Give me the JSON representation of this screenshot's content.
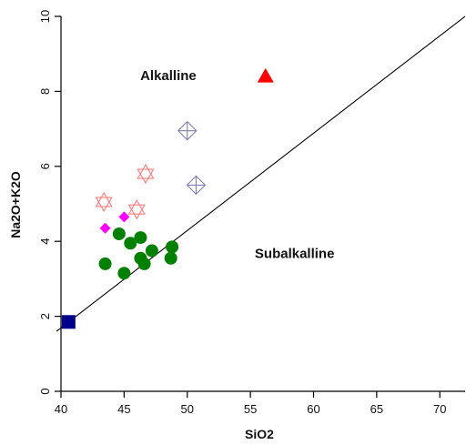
{
  "chart_data": {
    "type": "scatter",
    "xlabel": "SiO2",
    "ylabel": "Na2O+K2O",
    "xlim": [
      40,
      72
    ],
    "ylim": [
      0,
      10
    ],
    "x_ticks": [
      40,
      45,
      50,
      55,
      60,
      65,
      70
    ],
    "y_ticks": [
      0,
      2,
      4,
      6,
      8,
      10
    ],
    "annotations": [
      {
        "text": "Alkalline",
        "x": 48.5,
        "y": 8.3
      },
      {
        "text": "Subalkalline",
        "x": 58.5,
        "y": 3.55
      }
    ],
    "divider_line": {
      "x": [
        39.65,
        72
      ],
      "y": [
        1.6,
        10
      ]
    },
    "colors": {
      "green": "#008000",
      "magenta": "#ff00ff",
      "red": "#ff0000",
      "star_red": "#ff7f7f",
      "navy": "#00008b",
      "diamond_outline": "#7f7fb3"
    },
    "series": [
      {
        "marker": "circle-filled",
        "color": "#008000",
        "points": [
          [
            43.5,
            3.4
          ],
          [
            44.6,
            4.2
          ],
          [
            45.0,
            3.15
          ],
          [
            45.5,
            3.95
          ],
          [
            46.3,
            4.1
          ],
          [
            46.3,
            3.55
          ],
          [
            46.6,
            3.4
          ],
          [
            47.2,
            3.75
          ],
          [
            48.7,
            3.55
          ],
          [
            48.8,
            3.85
          ]
        ]
      },
      {
        "marker": "diamond-filled",
        "color": "#ff00ff",
        "points": [
          [
            43.5,
            4.35
          ],
          [
            45.0,
            4.65
          ]
        ]
      },
      {
        "marker": "star-of-david-open",
        "color": "#ff7f7f",
        "points": [
          [
            43.4,
            5.05
          ],
          [
            46.0,
            4.85
          ],
          [
            46.7,
            5.8
          ]
        ]
      },
      {
        "marker": "diamond-plus-open",
        "color": "#7f7fb3",
        "points": [
          [
            50.0,
            6.95
          ],
          [
            50.7,
            5.5
          ]
        ]
      },
      {
        "marker": "triangle-filled",
        "color": "#ff0000",
        "points": [
          [
            56.2,
            8.4
          ]
        ]
      },
      {
        "marker": "square-filled",
        "color": "#00008b",
        "points": [
          [
            40.6,
            1.85
          ]
        ]
      }
    ]
  }
}
